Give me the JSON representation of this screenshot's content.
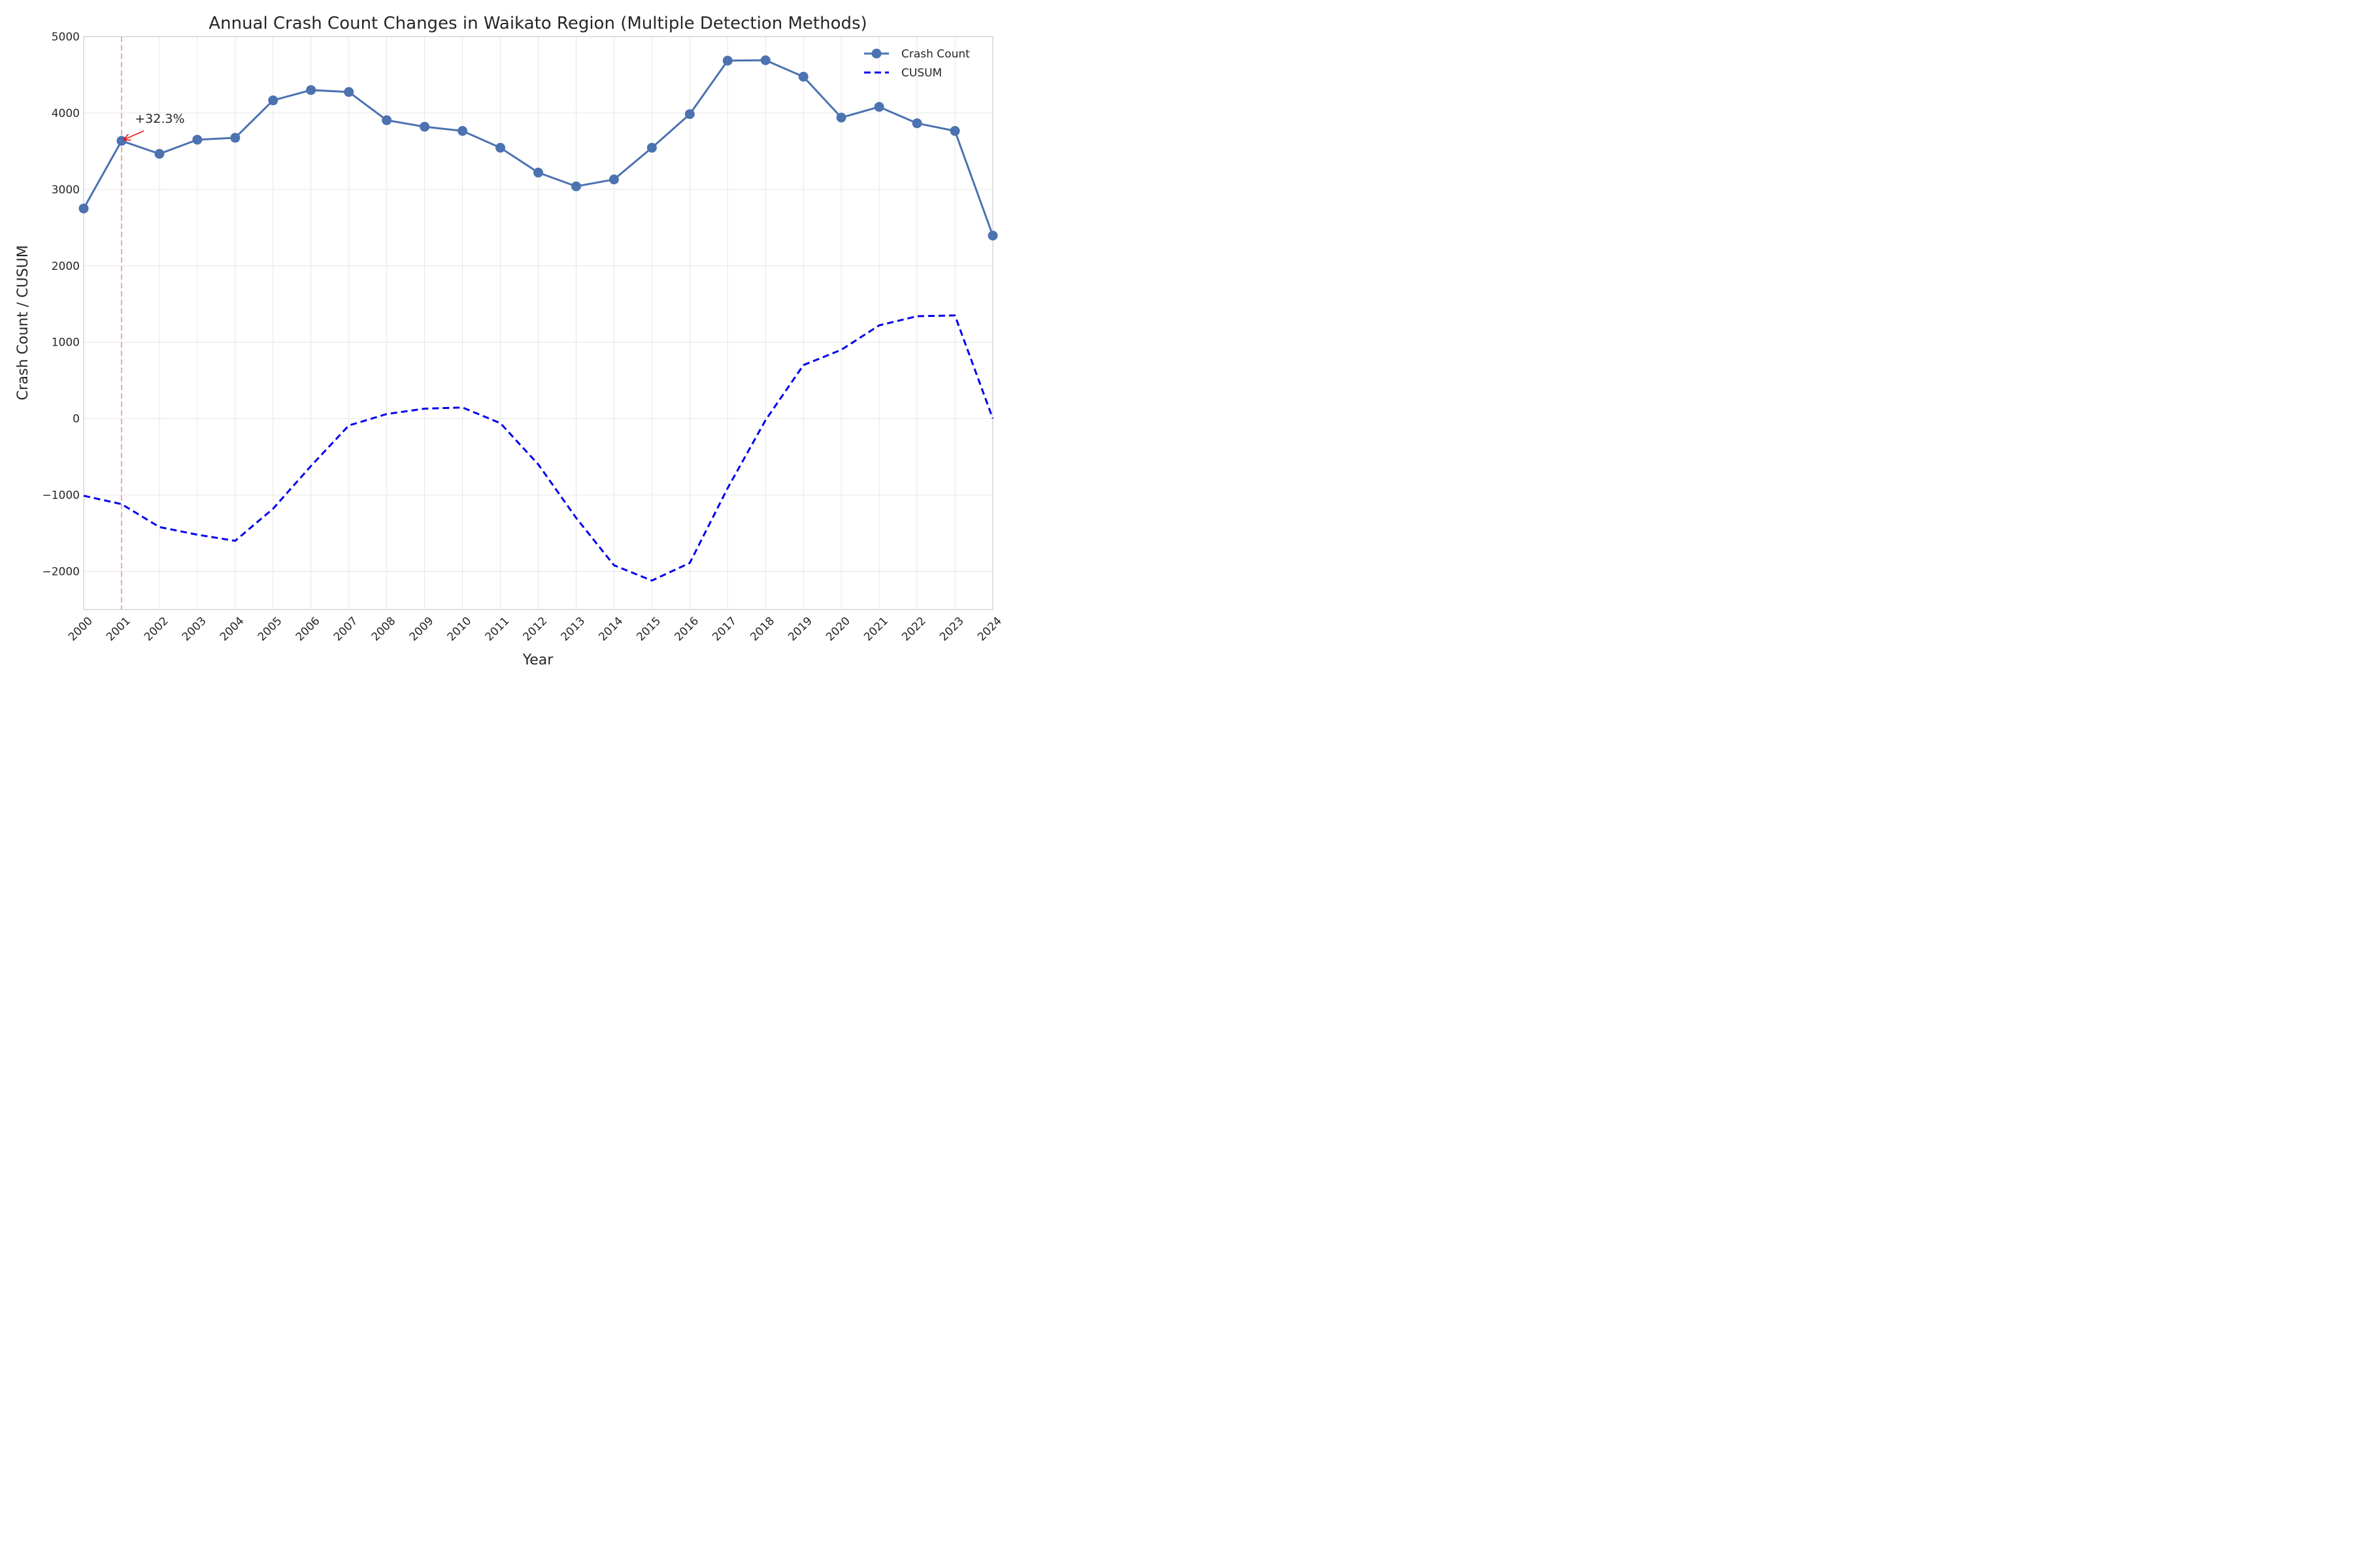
{
  "chart_data": {
    "type": "line",
    "title": "Annual Crash Count Changes in Waikato Region (Multiple Detection Methods)",
    "xlabel": "Year",
    "ylabel": "Crash Count / CUSUM",
    "x": [
      2000,
      2001,
      2002,
      2003,
      2004,
      2005,
      2006,
      2007,
      2008,
      2009,
      2010,
      2011,
      2012,
      2013,
      2014,
      2015,
      2016,
      2017,
      2018,
      2019,
      2020,
      2021,
      2022,
      2023,
      2024
    ],
    "xticks": [
      "2000",
      "2001",
      "2002",
      "2003",
      "2004",
      "2005",
      "2006",
      "2007",
      "2008",
      "2009",
      "2010",
      "2011",
      "2012",
      "2013",
      "2014",
      "2015",
      "2016",
      "2017",
      "2018",
      "2019",
      "2020",
      "2021",
      "2022",
      "2023",
      "2024"
    ],
    "xlim": [
      2000,
      2024
    ],
    "ylim": [
      -2500,
      5000
    ],
    "yticks": [
      -2000,
      -1000,
      0,
      1000,
      2000,
      3000,
      4000,
      5000
    ],
    "ytick_labels": [
      "−2000",
      "−1000",
      "0",
      "1000",
      "2000",
      "3000",
      "4000",
      "5000"
    ],
    "grid": true,
    "legend_position": "top-right",
    "series": [
      {
        "name": "Crash Count",
        "style": "solid-with-markers",
        "color": "#4c72b0",
        "values": [
          2750,
          3635,
          3465,
          3650,
          3675,
          4165,
          4300,
          4275,
          3905,
          3820,
          3765,
          3545,
          3220,
          3040,
          3130,
          3545,
          3985,
          4685,
          4690,
          4475,
          3940,
          4080,
          3865,
          3765,
          2395
        ]
      },
      {
        "name": "CUSUM",
        "style": "dashed",
        "color": "#0000ee",
        "values": [
          -1010,
          -1120,
          -1420,
          -1520,
          -1600,
          -1180,
          -620,
          -90,
          60,
          130,
          145,
          -60,
          -600,
          -1300,
          -1920,
          -2120,
          -1890,
          -910,
          -20,
          700,
          900,
          1220,
          1340,
          1350,
          0
        ]
      }
    ],
    "annotations": [
      {
        "text": "+32.3%",
        "x": 2001,
        "y": 3635,
        "text_x": 2001.35,
        "text_y": 3870,
        "color": "#ff0000"
      }
    ],
    "vlines": [
      {
        "x": 2001,
        "color": "#f4a3a3",
        "style": "dashed"
      }
    ]
  }
}
